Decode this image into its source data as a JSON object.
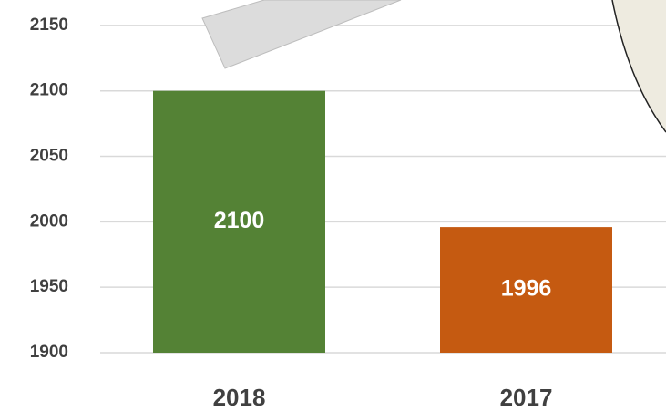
{
  "chart_data": {
    "type": "bar",
    "categories": [
      "2018",
      "2017"
    ],
    "values": [
      2100,
      1996
    ],
    "colors": [
      "#548235",
      "#c55a11"
    ],
    "ylim": [
      1900,
      2169
    ],
    "yticks": [
      1900,
      1950,
      2000,
      2050,
      2100,
      2150
    ],
    "grid": true
  }
}
